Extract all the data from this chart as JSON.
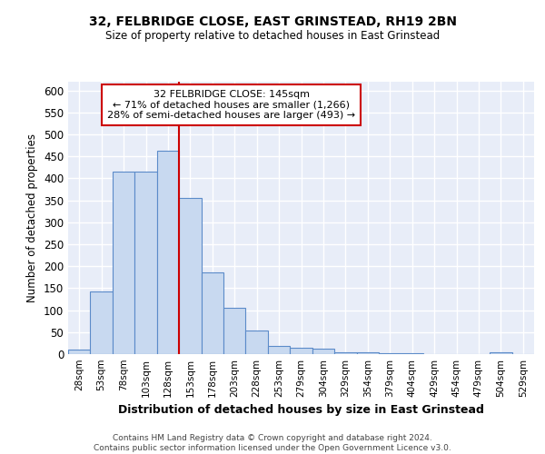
{
  "title1": "32, FELBRIDGE CLOSE, EAST GRINSTEAD, RH19 2BN",
  "title2": "Size of property relative to detached houses in East Grinstead",
  "xlabel": "Distribution of detached houses by size in East Grinstead",
  "ylabel": "Number of detached properties",
  "categories": [
    "28sqm",
    "53sqm",
    "78sqm",
    "103sqm",
    "128sqm",
    "153sqm",
    "178sqm",
    "203sqm",
    "228sqm",
    "253sqm",
    "279sqm",
    "304sqm",
    "329sqm",
    "354sqm",
    "379sqm",
    "404sqm",
    "429sqm",
    "454sqm",
    "479sqm",
    "504sqm",
    "529sqm"
  ],
  "values": [
    10,
    142,
    415,
    415,
    462,
    355,
    187,
    105,
    53,
    18,
    14,
    12,
    5,
    4,
    3,
    2,
    0,
    0,
    0,
    5,
    0
  ],
  "bar_color": "#c8d9f0",
  "bar_edge_color": "#5b8bc9",
  "bg_color": "#e8edf8",
  "grid_color": "#ffffff",
  "vline_color": "#cc0000",
  "annotation_text": "32 FELBRIDGE CLOSE: 145sqm\n← 71% of detached houses are smaller (1,266)\n28% of semi-detached houses are larger (493) →",
  "annotation_box_color": "#ffffff",
  "annotation_box_edge": "#cc0000",
  "footer_text": "Contains HM Land Registry data © Crown copyright and database right 2024.\nContains public sector information licensed under the Open Government Licence v3.0.",
  "ylim": [
    0,
    620
  ],
  "yticks": [
    0,
    50,
    100,
    150,
    200,
    250,
    300,
    350,
    400,
    450,
    500,
    550,
    600
  ]
}
